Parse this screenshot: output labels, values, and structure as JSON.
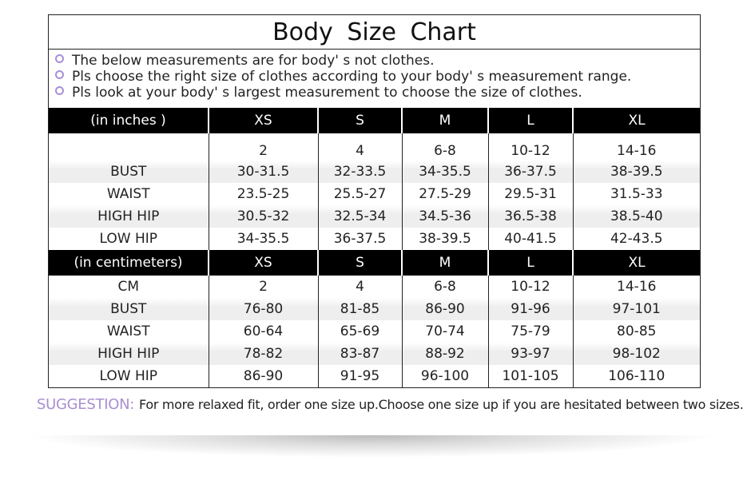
{
  "title": "Body  Size  Chart",
  "notes": [
    "The below measurements are for  body' s not clothes.",
    "Pls choose the right size of clothes according to your body' s  measurement range.",
    "Pls look  at your body' s  largest measurement to choose the size of clothes."
  ],
  "colors": {
    "accent": "#a88fd0",
    "header_bg": "#000000"
  },
  "inches": {
    "header": [
      "(in  inches )",
      "XS",
      "S",
      "M",
      "L",
      "XL"
    ],
    "rows": [
      [
        "",
        "2",
        "4",
        "6-8",
        "10-12",
        "14-16"
      ],
      [
        "BUST",
        "30-31.5",
        "32-33.5",
        "34-35.5",
        "36-37.5",
        "38-39.5"
      ],
      [
        "WAIST",
        "23.5-25",
        "25.5-27",
        "27.5-29",
        "29.5-31",
        "31.5-33"
      ],
      [
        "HIGH HIP",
        "30.5-32",
        "32.5-34",
        "34.5-36",
        "36.5-38",
        "38.5-40"
      ],
      [
        "LOW HIP",
        "34-35.5",
        "36-37.5",
        "38-39.5",
        "40-41.5",
        "42-43.5"
      ]
    ]
  },
  "centimeters": {
    "header": [
      "(in centimeters)",
      "XS",
      "S",
      "M",
      "L",
      "XL"
    ],
    "rows": [
      [
        "CM",
        "2",
        "4",
        "6-8",
        "10-12",
        "14-16"
      ],
      [
        "BUST",
        "76-80",
        "81-85",
        "86-90",
        "91-96",
        "97-101"
      ],
      [
        "WAIST",
        "60-64",
        "65-69",
        "70-74",
        "75-79",
        "80-85"
      ],
      [
        "HIGH HIP",
        "78-82",
        "83-87",
        "88-92",
        "93-97",
        "98-102"
      ],
      [
        "LOW HIP",
        "86-90",
        "91-95",
        "96-100",
        "101-105",
        "106-110"
      ]
    ]
  },
  "suggestion": {
    "label": "SUGGESTION:",
    "text": "For more relaxed fit, order one size up.Choose one size up if you are hesitated between two sizes."
  }
}
